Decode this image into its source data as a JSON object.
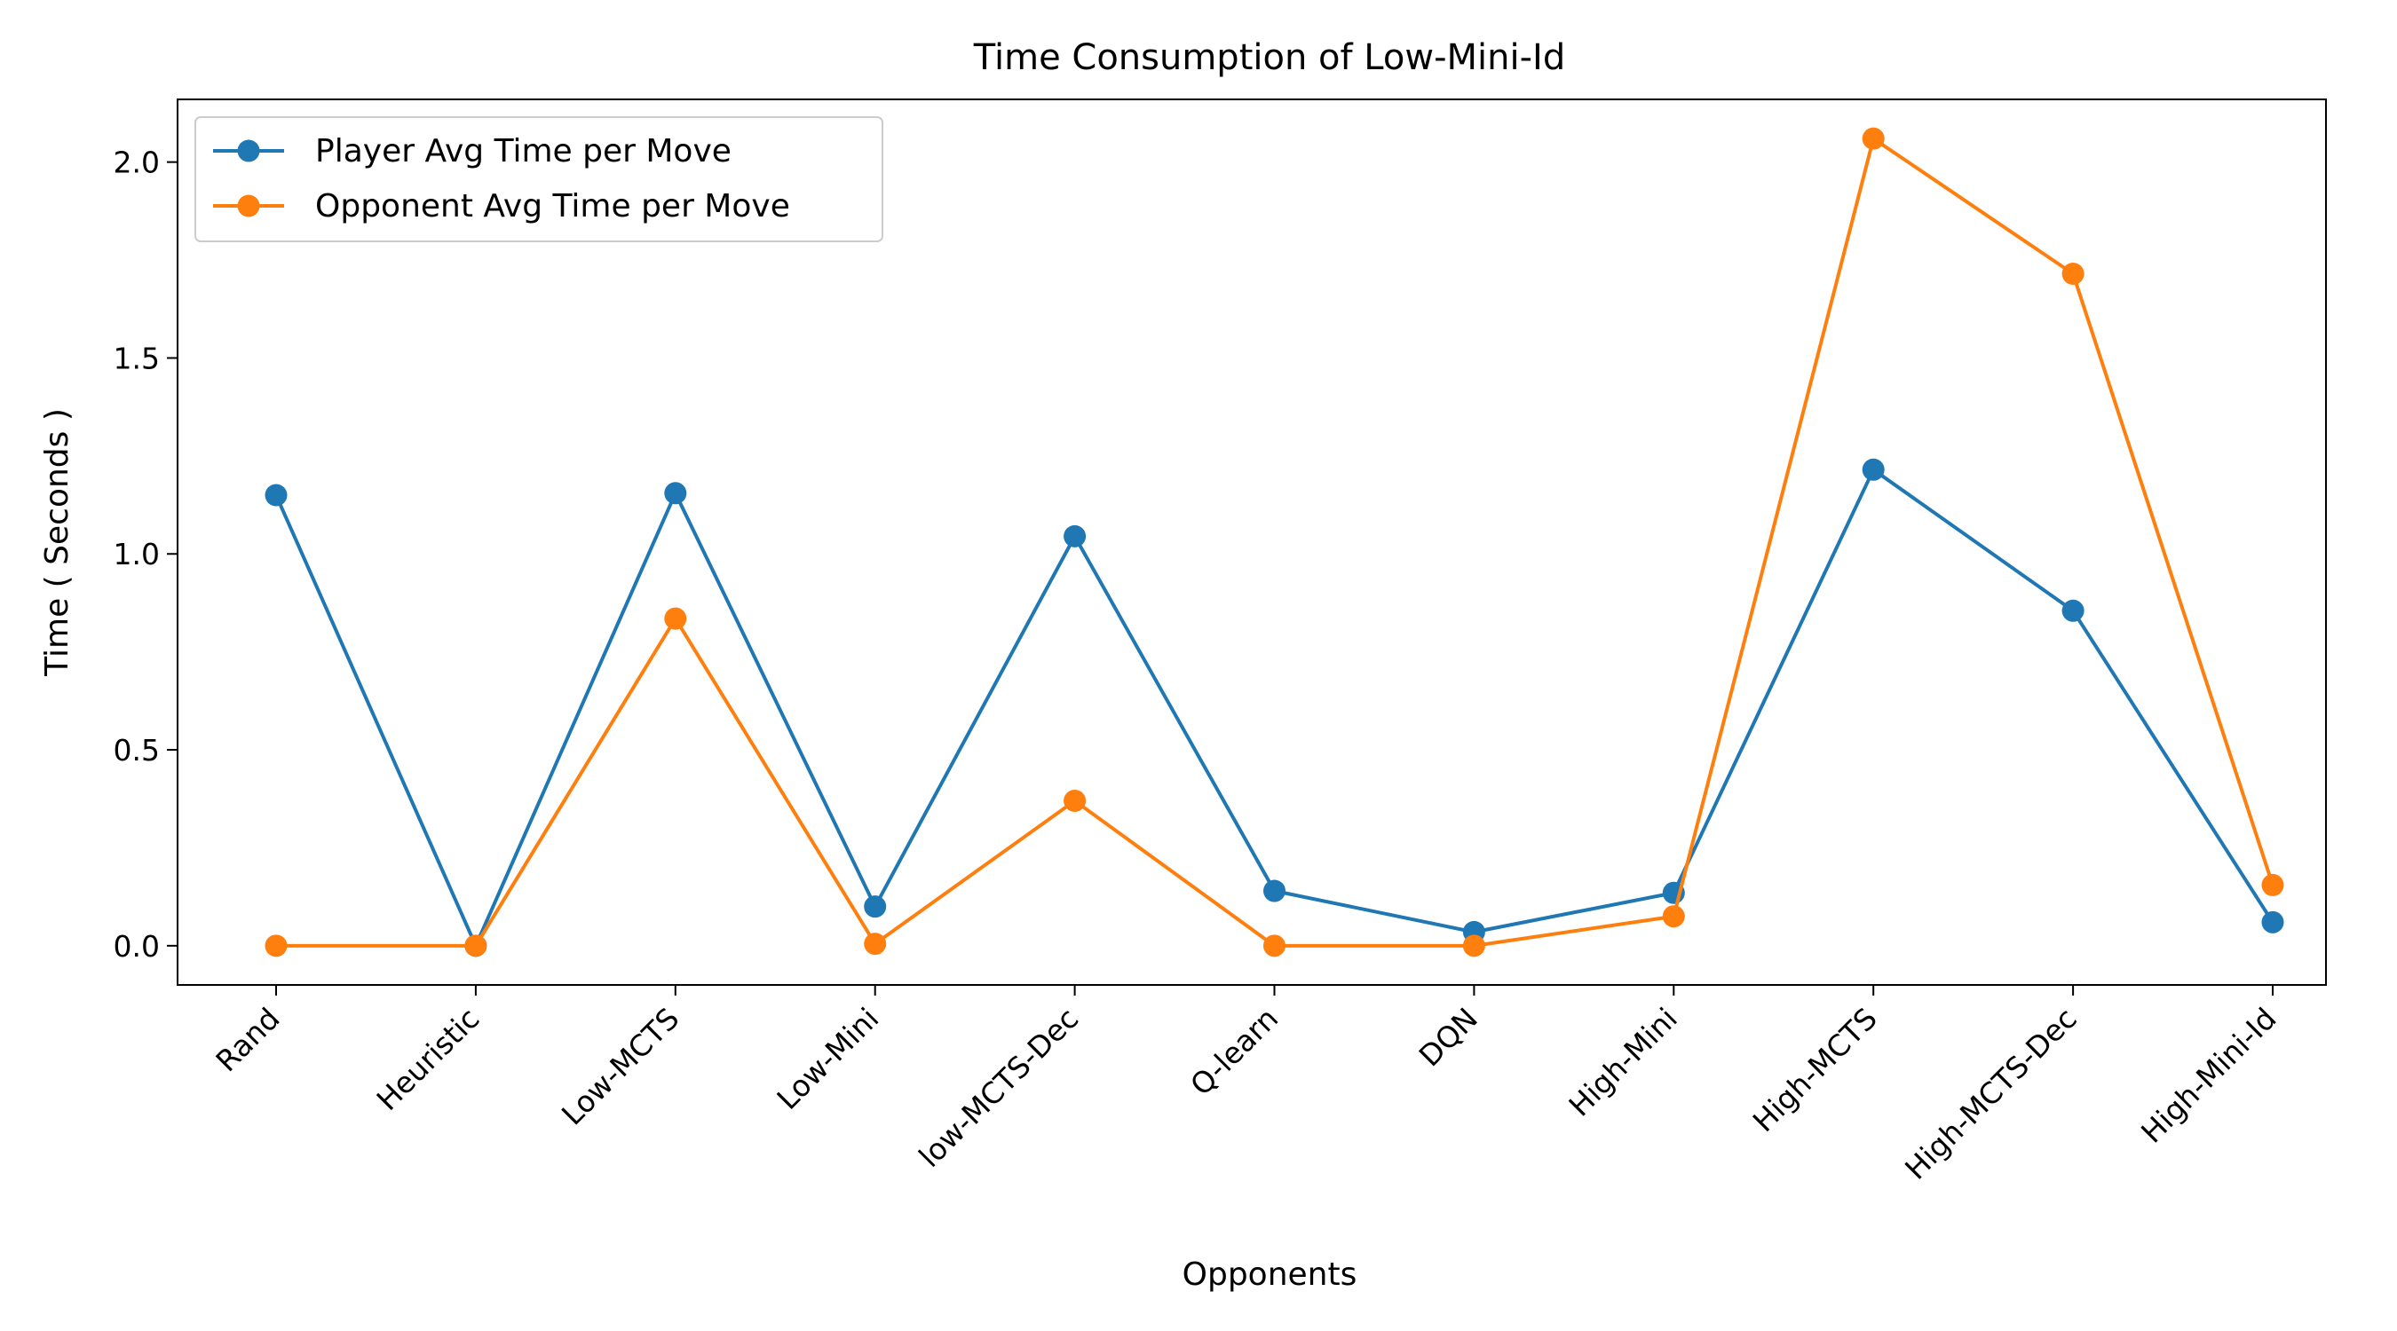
{
  "chart_data": {
    "type": "line",
    "title": "Time Consumption of Low-Mini-Id",
    "xlabel": "Opponents",
    "ylabel": "Time ( Seconds )",
    "categories": [
      "Rand",
      "Heuristic",
      "Low-MCTS",
      "Low-Mini",
      "low-MCTS-Dec",
      "Q-learn",
      "DQN",
      "High-Mini",
      "High-MCTS",
      "High-MCTS-Dec",
      "High-Mini-Id"
    ],
    "series": [
      {
        "name": "Player Avg Time per Move",
        "color": "#1f77b4",
        "values": [
          1.15,
          0.0,
          1.155,
          0.1,
          1.045,
          0.14,
          0.035,
          0.135,
          1.215,
          0.855,
          0.06
        ]
      },
      {
        "name": "Opponent Avg Time per Move",
        "color": "#ff7f0e",
        "values": [
          0.0,
          0.0,
          0.835,
          0.005,
          0.37,
          0.0,
          0.0,
          0.075,
          2.06,
          1.715,
          0.155
        ]
      }
    ],
    "ylim": [
      -0.1,
      2.16
    ],
    "yticks": [
      0.0,
      0.5,
      1.0,
      1.5,
      2.0
    ],
    "ytick_labels": [
      "0.0",
      "0.5",
      "1.0",
      "1.5",
      "2.0"
    ],
    "grid": false,
    "legend_position": "top-left"
  }
}
